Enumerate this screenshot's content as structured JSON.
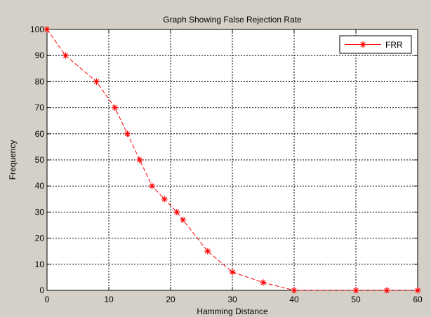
{
  "chart_data": {
    "type": "line",
    "title": "Graph Showing False Rejection Rate",
    "xlabel": "Hamming Distance",
    "ylabel": "Frequency",
    "xlim": [
      0,
      60
    ],
    "ylim": [
      0,
      100
    ],
    "xticks": [
      "0",
      "10",
      "20",
      "30",
      "40",
      "50",
      "60"
    ],
    "yticks": [
      "0",
      "10",
      "20",
      "30",
      "40",
      "50",
      "60",
      "70",
      "80",
      "90",
      "100"
    ],
    "grid": true,
    "legend_position": "top-right",
    "series": [
      {
        "name": "FRR",
        "color": "#ff0000",
        "line_style": "dashed",
        "marker": "asterisk",
        "x": [
          0,
          3,
          8,
          11,
          13,
          15,
          17,
          19,
          21,
          22,
          26,
          30,
          35,
          40,
          50,
          55,
          60
        ],
        "y": [
          100,
          90,
          80,
          70,
          60,
          50,
          40,
          35,
          30,
          27,
          15,
          7,
          3,
          0,
          0,
          0,
          0
        ]
      }
    ]
  }
}
